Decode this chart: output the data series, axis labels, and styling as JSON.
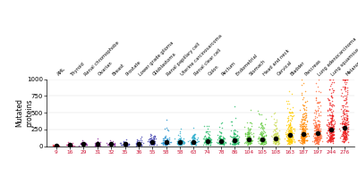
{
  "categories": [
    "AML",
    "Thyroid",
    "Renal chromophobe",
    "Ovarian",
    "Breast",
    "Prostate",
    "Lower grade glioma",
    "Glioblastoma",
    "Renal papillary cell",
    "Uterine carcinosarcoma",
    "Renal clear cell",
    "Colon",
    "Rectum",
    "Endometrial",
    "Stomach",
    "Head and neck",
    "Cervical",
    "Bladder",
    "Pancreas",
    "Lung adenocarcinoma",
    "Lung squamous cell",
    "Melanoma"
  ],
  "medians": [
    9,
    16,
    29,
    31,
    32,
    35,
    36,
    55,
    58,
    58,
    63,
    74,
    78,
    86,
    104,
    105,
    108,
    163,
    187,
    197,
    244,
    276
  ],
  "category_colors": [
    "#e8192c",
    "#cc2277",
    "#882299",
    "#882299",
    "#882299",
    "#3333aa",
    "#3333aa",
    "#3333aa",
    "#1188cc",
    "#22aacc",
    "#22aacc",
    "#22bb66",
    "#22bb66",
    "#22bb66",
    "#66cc44",
    "#66cc44",
    "#ccdd55",
    "#ffcc00",
    "#ff8800",
    "#ff6633",
    "#ee2222",
    "#ee2222"
  ],
  "ylim": [
    0,
    1000
  ],
  "yticks": [
    0,
    250,
    500,
    750,
    1000
  ],
  "ylabel": "Mutated\nproteins",
  "background": "#ffffff",
  "seeds": [
    42,
    43,
    44,
    45,
    46,
    47,
    48,
    49,
    50,
    51,
    52,
    53,
    54,
    55,
    56,
    57,
    58,
    59,
    60,
    61,
    62,
    63
  ]
}
